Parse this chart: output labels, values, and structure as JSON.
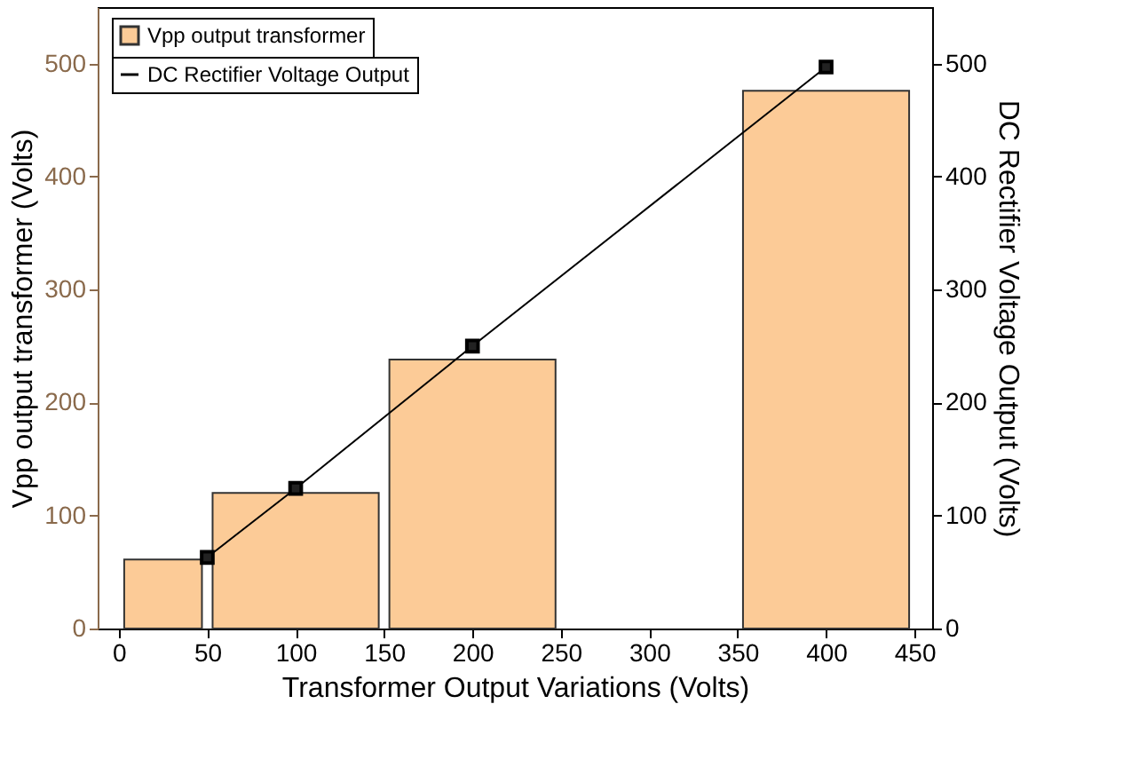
{
  "chart_data": {
    "type": "histogram",
    "xlabel": "Transformer Output Variations (Volts)",
    "ylabel": "Vpp output transformer (Volts)",
    "y2label": "DC Rectifier Voltage Output (Volts)",
    "xlim": [
      -12,
      460
    ],
    "xticks": [
      0,
      50,
      100,
      150,
      200,
      250,
      300,
      350,
      400,
      450
    ],
    "ylim": [
      0,
      550
    ],
    "yticks": [
      0,
      100,
      200,
      300,
      400,
      500
    ],
    "y2lim": [
      0,
      550
    ],
    "y2ticks": [
      0,
      100,
      200,
      300,
      400,
      500
    ],
    "series": [
      {
        "name": "Vpp output transformer",
        "color": "#fccb97",
        "bins": [
          0,
          50,
          150,
          250,
          350,
          450
        ],
        "values": [
          61,
          120,
          238,
          0,
          476
        ]
      },
      {
        "name": "DC Rectifier Voltage Output",
        "type": "line",
        "axis": "y2",
        "color": "#000000",
        "marker": "square",
        "line_style": "solid",
        "x": [
          50,
          100,
          200,
          400
        ],
        "values": [
          63,
          124,
          250,
          497
        ]
      }
    ],
    "legend": "top left",
    "grid": false
  }
}
